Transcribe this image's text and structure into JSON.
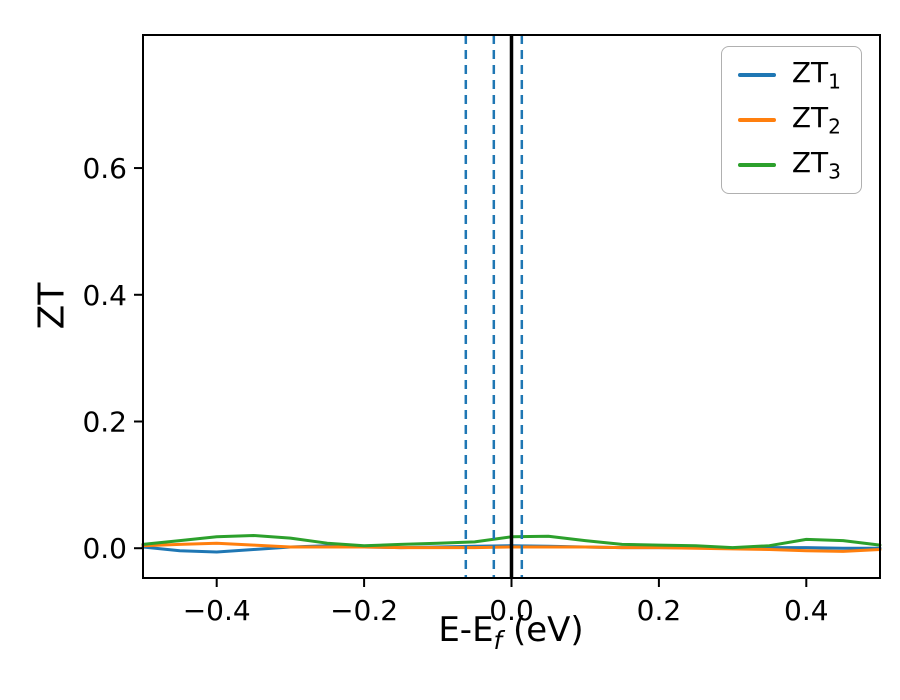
{
  "chart_data": {
    "type": "line",
    "title": "",
    "xlabel": "E-E_f (eV)",
    "xlabel_parts": {
      "main": "E-E",
      "sub": "f",
      "rest": " (eV)"
    },
    "ylabel": "ZT",
    "xlim": [
      -0.5,
      0.5
    ],
    "ylim": [
      -0.047,
      0.81
    ],
    "xticks": [
      -0.4,
      -0.2,
      0.0,
      0.2,
      0.4
    ],
    "xtick_labels": [
      "−0.4",
      "−0.2",
      "0.0",
      "0.2",
      "0.4"
    ],
    "yticks": [
      0.0,
      0.2,
      0.4,
      0.6
    ],
    "ytick_labels": [
      "0.0",
      "0.2",
      "0.4",
      "0.6"
    ],
    "grid": false,
    "legend_position": "upper right",
    "x": [
      -0.5,
      -0.45,
      -0.4,
      -0.35,
      -0.3,
      -0.25,
      -0.2,
      -0.15,
      -0.1,
      -0.05,
      0.0,
      0.05,
      0.1,
      0.15,
      0.2,
      0.25,
      0.3,
      0.35,
      0.4,
      0.45,
      0.5
    ],
    "series": [
      {
        "name": "ZT1",
        "label_base": "ZT",
        "label_sub": "1",
        "color": "#1f77b4",
        "y": [
          0.002,
          -0.004,
          -0.006,
          -0.002,
          0.002,
          0.004,
          0.002,
          0.001,
          0.002,
          0.003,
          0.004,
          0.003,
          0.002,
          0.001,
          0.001,
          0.001,
          0.0,
          0.001,
          0.001,
          0.0,
          0.0
        ]
      },
      {
        "name": "ZT2",
        "label_base": "ZT",
        "label_sub": "2",
        "color": "#ff7f0e",
        "y": [
          0.004,
          0.006,
          0.008,
          0.005,
          0.002,
          0.002,
          0.002,
          0.001,
          0.001,
          0.001,
          0.002,
          0.002,
          0.002,
          0.001,
          0.001,
          0.0,
          -0.001,
          -0.002,
          -0.004,
          -0.005,
          -0.002
        ]
      },
      {
        "name": "ZT3",
        "label_base": "ZT",
        "label_sub": "3",
        "color": "#2ca02c",
        "y": [
          0.006,
          0.012,
          0.018,
          0.02,
          0.016,
          0.008,
          0.004,
          0.006,
          0.008,
          0.01,
          0.018,
          0.019,
          0.012,
          0.006,
          0.005,
          0.004,
          0.001,
          0.004,
          0.014,
          0.012,
          0.005
        ]
      }
    ],
    "vlines": [
      {
        "x": -0.062,
        "style": "dashed",
        "color": "#1f77b4"
      },
      {
        "x": -0.024,
        "style": "dashed",
        "color": "#1f77b4"
      },
      {
        "x": 0.014,
        "style": "dashed",
        "color": "#1f77b4"
      },
      {
        "x": 0.0,
        "style": "solid",
        "color": "#000000"
      }
    ],
    "axes": {
      "spine_color": "#000000",
      "tick_color": "#000000",
      "tick_label_fontsize": 28
    }
  }
}
